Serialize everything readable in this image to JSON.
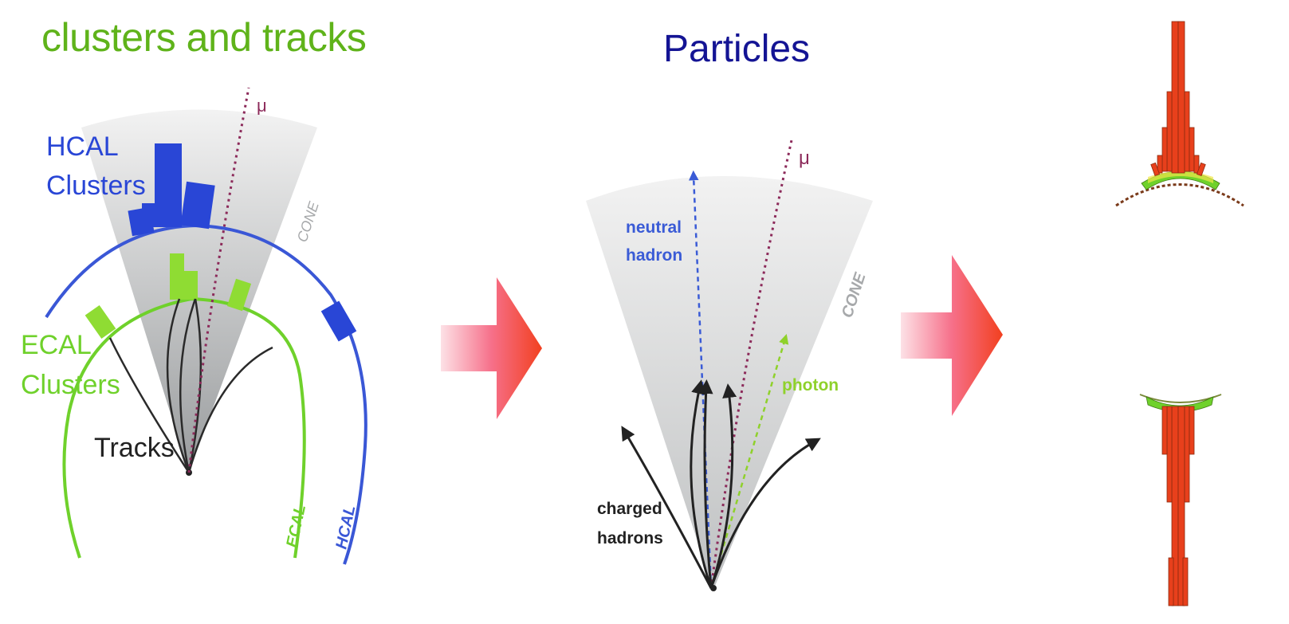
{
  "left_panel": {
    "title": "clusters and tracks",
    "labels": {
      "hcal_clusters_line1": "HCAL",
      "hcal_clusters_line2": "Clusters",
      "ecal_clusters_line1": "ECAL",
      "ecal_clusters_line2": "Clusters",
      "tracks": "Tracks",
      "cone": "CONE",
      "mu": "μ",
      "ecal_arc": "ECAL",
      "hcal_arc": "HCAL"
    }
  },
  "middle_panel": {
    "title": "Particles",
    "labels": {
      "neutral_hadron_line1": "neutral",
      "neutral_hadron_line2": "hadron",
      "photon": "photon",
      "charged_line1": "charged",
      "charged_line2": "hadrons",
      "cone": "CONE",
      "mu": "μ"
    }
  },
  "colors": {
    "hcal": "#2946d6",
    "ecal": "#6fd12b",
    "arrow": "#f2401f",
    "muon": "#8c2a5a",
    "bars": "#e8401c",
    "cone": "#d7d9da"
  }
}
